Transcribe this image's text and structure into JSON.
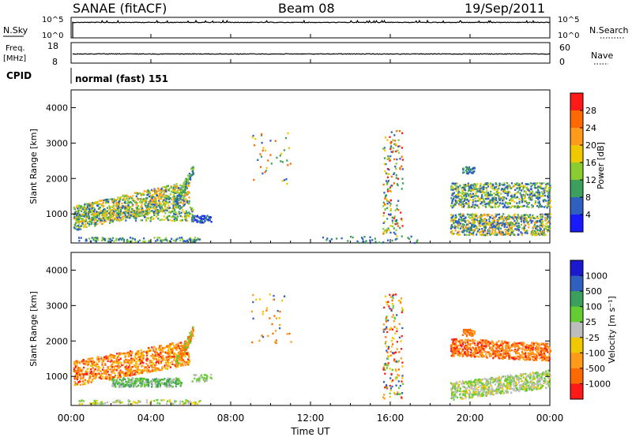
{
  "header": {
    "title": "SANAE (fitACF)",
    "beam": "Beam 08",
    "date": "19/Sep/2011"
  },
  "top_panels": {
    "nsky_label": "N.Sky",
    "nsearch_label": "N.Search",
    "nsky_ticks": [
      "10^5",
      "10^0"
    ],
    "nsky_right_ticks": [
      "10^5",
      "10^0"
    ],
    "freq_label_1": "Freq.",
    "freq_label_2": "[MHz]",
    "freq_ticks": [
      "18",
      "8"
    ],
    "nave_label": "Nave",
    "nave_ticks": [
      "60",
      "0"
    ],
    "cpid_label": "CPID",
    "cpid_value": "normal (fast) 151"
  },
  "power_panel": {
    "ylabel": "Slant Range [km]",
    "colorbar_label": "Power [dB]",
    "colorbar_ticks": [
      "28",
      "24",
      "20",
      "16",
      "12",
      "8",
      "4"
    ],
    "colorbar_colors": [
      "#ff1a1a",
      "#ff6a00",
      "#ff9a1a",
      "#f0c800",
      "#8ccc33",
      "#3c9f5c",
      "#2f5fbf",
      "#1a1aff"
    ]
  },
  "velocity_panel": {
    "ylabel": "Slant Range [km]",
    "colorbar_label": "Velocity [m s⁻¹]",
    "colorbar_ticks": [
      "1000",
      "500",
      "100",
      "25",
      "-25",
      "-100",
      "-500",
      "-1000"
    ],
    "colorbar_colors": [
      "#1a1acc",
      "#2f5fbf",
      "#3c9f5c",
      "#66cc33",
      "#bdbdbd",
      "#f0c800",
      "#ff9a1a",
      "#ff6a00",
      "#ff1a1a"
    ]
  },
  "x_axis": {
    "label": "Time UT",
    "ticks": [
      "00:00",
      "04:00",
      "08:00",
      "12:00",
      "16:00",
      "20:00",
      "00:00"
    ]
  },
  "chart_data": [
    {
      "type": "heatmap",
      "title": "Power",
      "xlabel": "Time UT",
      "ylabel": "Slant Range [km]",
      "xlim": [
        0,
        24
      ],
      "ylim": [
        180,
        4500
      ],
      "yticks": [
        1000,
        2000,
        3000,
        4000
      ],
      "colorbar": {
        "label": "Power [dB]",
        "ticks": [
          28,
          24,
          20,
          16,
          12,
          8,
          4
        ]
      },
      "scatter_regions": [
        {
          "t": [
            0.0,
            6.0
          ],
          "range_km": [
            600,
            1900
          ],
          "dominant": "power 8-20 dB"
        },
        {
          "t": [
            6.0,
            7.0
          ],
          "range_km": [
            700,
            1000
          ],
          "dominant": "power 4-12 dB"
        },
        {
          "t": [
            9.0,
            11.0
          ],
          "range_km": [
            1800,
            3500
          ],
          "dominant": "sparse"
        },
        {
          "t": [
            15.5,
            16.6
          ],
          "range_km": [
            300,
            3500
          ],
          "dominant": "sparse"
        },
        {
          "t": [
            19.0,
            24.0
          ],
          "range_km": [
            400,
            2400
          ],
          "dominant": "power 4-16 dB"
        }
      ]
    },
    {
      "type": "heatmap",
      "title": "Velocity",
      "xlabel": "Time UT",
      "ylabel": "Slant Range [km]",
      "xlim": [
        0,
        24
      ],
      "ylim": [
        180,
        4500
      ],
      "yticks": [
        1000,
        2000,
        3000,
        4000
      ],
      "colorbar": {
        "label": "Velocity [m s⁻¹]",
        "ticks": [
          1000,
          500,
          100,
          25,
          -25,
          -100,
          -500,
          -1000
        ]
      },
      "scatter_regions": [
        {
          "t": [
            0.0,
            6.0
          ],
          "range_km": [
            900,
            1900
          ],
          "dominant": "-100 to -500 m/s"
        },
        {
          "t": [
            2.0,
            5.0
          ],
          "range_km": [
            700,
            1000
          ],
          "dominant": "100 m/s"
        },
        {
          "t": [
            19.0,
            24.0
          ],
          "range_km": [
            1400,
            2400
          ],
          "dominant": "-100 to -500 m/s"
        },
        {
          "t": [
            19.0,
            24.0
          ],
          "range_km": [
            400,
            1100
          ],
          "dominant": "-25 to 100 m/s"
        }
      ]
    }
  ]
}
